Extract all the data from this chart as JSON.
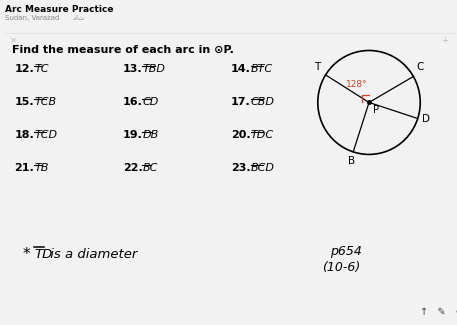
{
  "title": "Arc Measure Practice",
  "subtitle": "Sudan, Varazad      دات",
  "instruction_pre": "Find the measure of each arc in ",
  "instruction_circle": "⊙",
  "instruction_post": "P.",
  "background_color": "#f2f2f2",
  "card_color": "#ffffff",
  "note_color": "#f7f5f0",
  "footer_color": "#aaaaaa",
  "problems": [
    {
      "num": "12.",
      "label": "TC"
    },
    {
      "num": "13.",
      "label": "TBD"
    },
    {
      "num": "14.",
      "label": "BTC"
    },
    {
      "num": "15.",
      "label": "TCB"
    },
    {
      "num": "16.",
      "label": "CD"
    },
    {
      "num": "17.",
      "label": "CBD"
    },
    {
      "num": "18.",
      "label": "TCD"
    },
    {
      "num": "19.",
      "label": "DB"
    },
    {
      "num": "20.",
      "label": "TDC"
    },
    {
      "num": "21.",
      "label": "TB"
    },
    {
      "num": "22.",
      "label": "BC"
    },
    {
      "num": "23.",
      "label": "BCD"
    }
  ],
  "angle_label": "128°",
  "angle_color": "#cc4422",
  "circle_angles": {
    "T": 148,
    "C": 30,
    "D": 342,
    "B": 252
  },
  "note_text_pre": "* ",
  "note_td": "TD",
  "note_text_post": " is a diameter",
  "page_line1": "p654",
  "page_line2": "(10-6)"
}
